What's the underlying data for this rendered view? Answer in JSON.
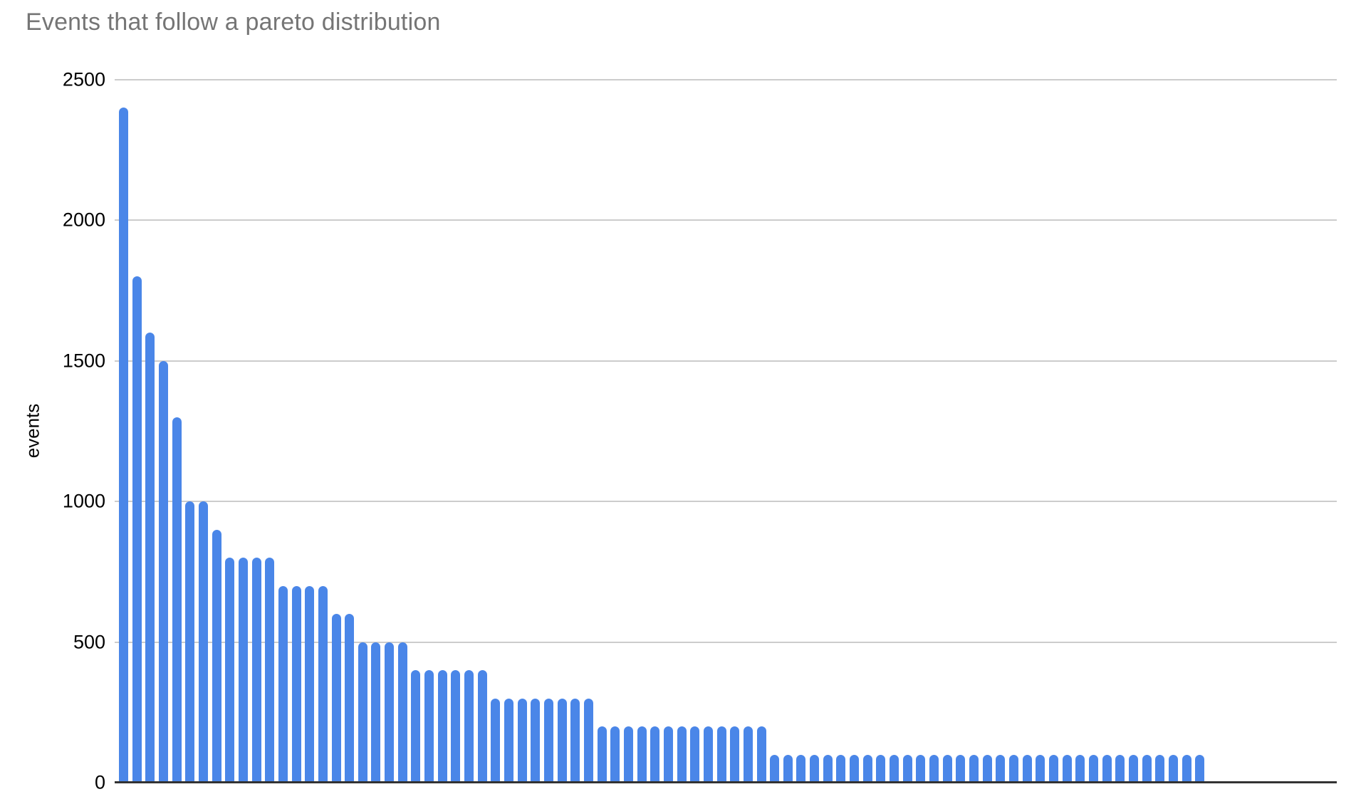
{
  "chart_data": {
    "type": "bar",
    "title": "Events that follow a pareto distribution",
    "ylabel": "events",
    "xlabel": "",
    "x_tick_labels": [],
    "legend": "none",
    "grid": "horizontal",
    "ylim": [
      0,
      2500
    ],
    "yticks": [
      0,
      500,
      1000,
      1500,
      2000,
      2500
    ],
    "bar_count": 82,
    "values": [
      2400,
      1800,
      1600,
      1500,
      1300,
      1000,
      1000,
      900,
      800,
      800,
      800,
      800,
      700,
      700,
      700,
      700,
      600,
      600,
      500,
      500,
      500,
      500,
      400,
      400,
      400,
      400,
      400,
      400,
      300,
      300,
      300,
      300,
      300,
      300,
      300,
      300,
      200,
      200,
      200,
      200,
      200,
      200,
      200,
      200,
      200,
      200,
      200,
      200,
      200,
      100,
      100,
      100,
      100,
      100,
      100,
      100,
      100,
      100,
      100,
      100,
      100,
      100,
      100,
      100,
      100,
      100,
      100,
      100,
      100,
      100,
      100,
      100,
      100,
      100,
      100,
      100,
      100,
      100,
      100,
      100,
      100,
      100
    ],
    "value_groups": [
      {
        "value": 2400,
        "count": 1
      },
      {
        "value": 1800,
        "count": 1
      },
      {
        "value": 1600,
        "count": 1
      },
      {
        "value": 1500,
        "count": 1
      },
      {
        "value": 1300,
        "count": 1
      },
      {
        "value": 1000,
        "count": 2
      },
      {
        "value": 900,
        "count": 1
      },
      {
        "value": 800,
        "count": 4
      },
      {
        "value": 700,
        "count": 4
      },
      {
        "value": 600,
        "count": 2
      },
      {
        "value": 500,
        "count": 4
      },
      {
        "value": 400,
        "count": 6
      },
      {
        "value": 300,
        "count": 8
      },
      {
        "value": 200,
        "count": 13
      },
      {
        "value": 100,
        "count": 33
      }
    ]
  },
  "colors": {
    "bar": "#4A86E8",
    "title": "#757575",
    "tick_label": "#000000",
    "ylabel": "#000000",
    "axis_line": "#333333",
    "gridline": "#CCCCCC",
    "background": "#FFFFFF"
  }
}
